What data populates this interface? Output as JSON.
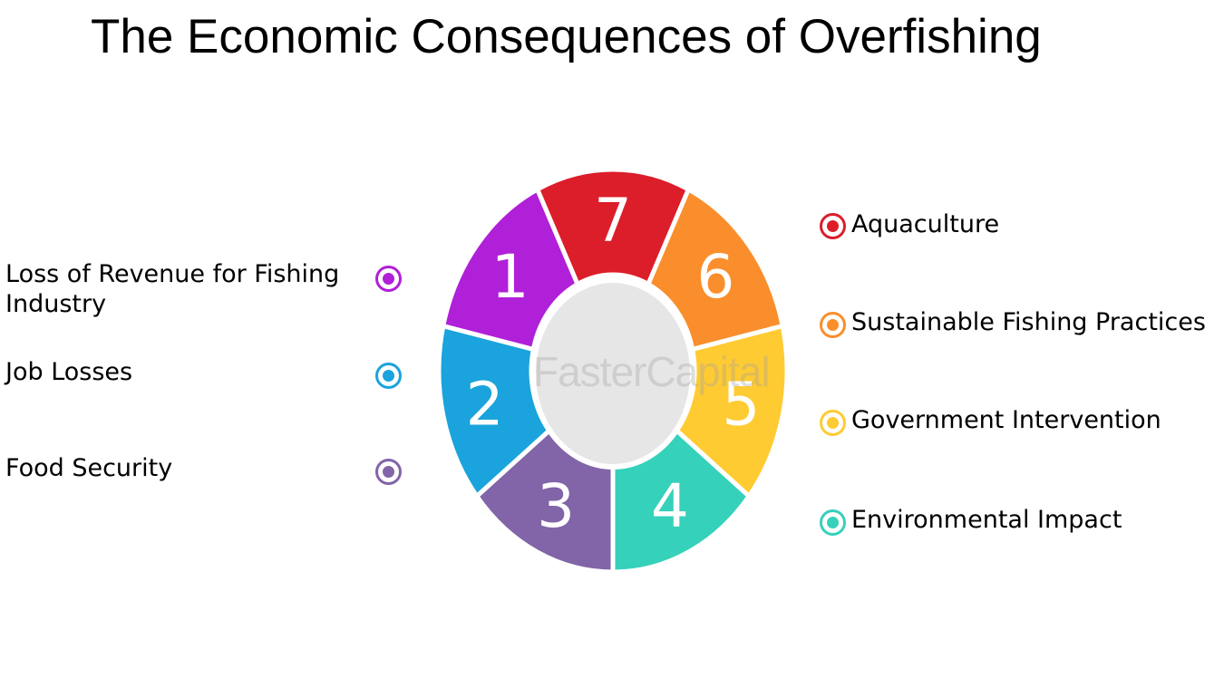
{
  "title": "The Economic Consequences of Overfishing",
  "watermark": "FasterCapital",
  "segments": [
    {
      "number": "1",
      "label": "Loss of Revenue for Fishing Industry",
      "color": "#B020D8"
    },
    {
      "number": "2",
      "label": "Job Losses",
      "color": "#1AA3DC"
    },
    {
      "number": "3",
      "label": "Food Security",
      "color": "#8264A8"
    },
    {
      "number": "4",
      "label": "Environmental Impact",
      "color": "#36D1BA"
    },
    {
      "number": "5",
      "label": "Government Intervention",
      "color": "#FFCB32"
    },
    {
      "number": "6",
      "label": "Sustainable Fishing Practices",
      "color": "#FA8E2C"
    },
    {
      "number": "7",
      "label": "Aquaculture",
      "color": "#DC1E2A"
    }
  ],
  "center_color": "#E6E6E6"
}
